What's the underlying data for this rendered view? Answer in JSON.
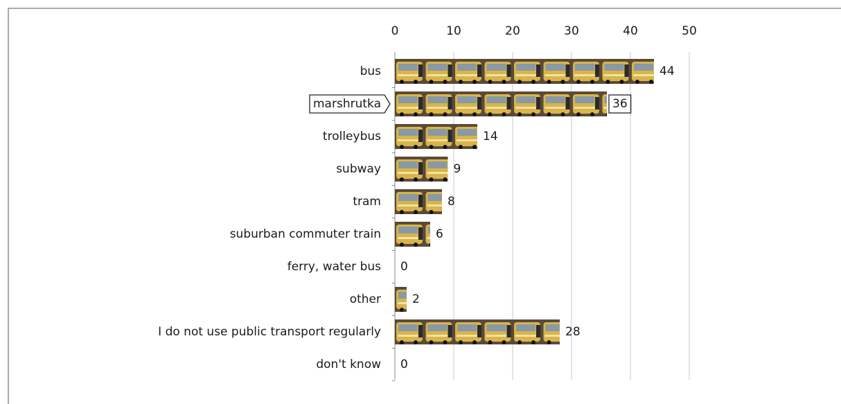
{
  "chart_data": {
    "type": "bar",
    "orientation": "horizontal",
    "categories": [
      "bus",
      "marshrutka",
      "trolleybus",
      "subway",
      "tram",
      "suburban commuter train",
      "ferry, water bus",
      "other",
      "I do not use public transport regularly",
      "don't know"
    ],
    "values": [
      44,
      36,
      14,
      9,
      8,
      6,
      0,
      2,
      28,
      0
    ],
    "xlim": [
      0,
      50
    ],
    "xticks": [
      0,
      10,
      20,
      30,
      40,
      50
    ],
    "grid": true,
    "highlight": 1
  }
}
